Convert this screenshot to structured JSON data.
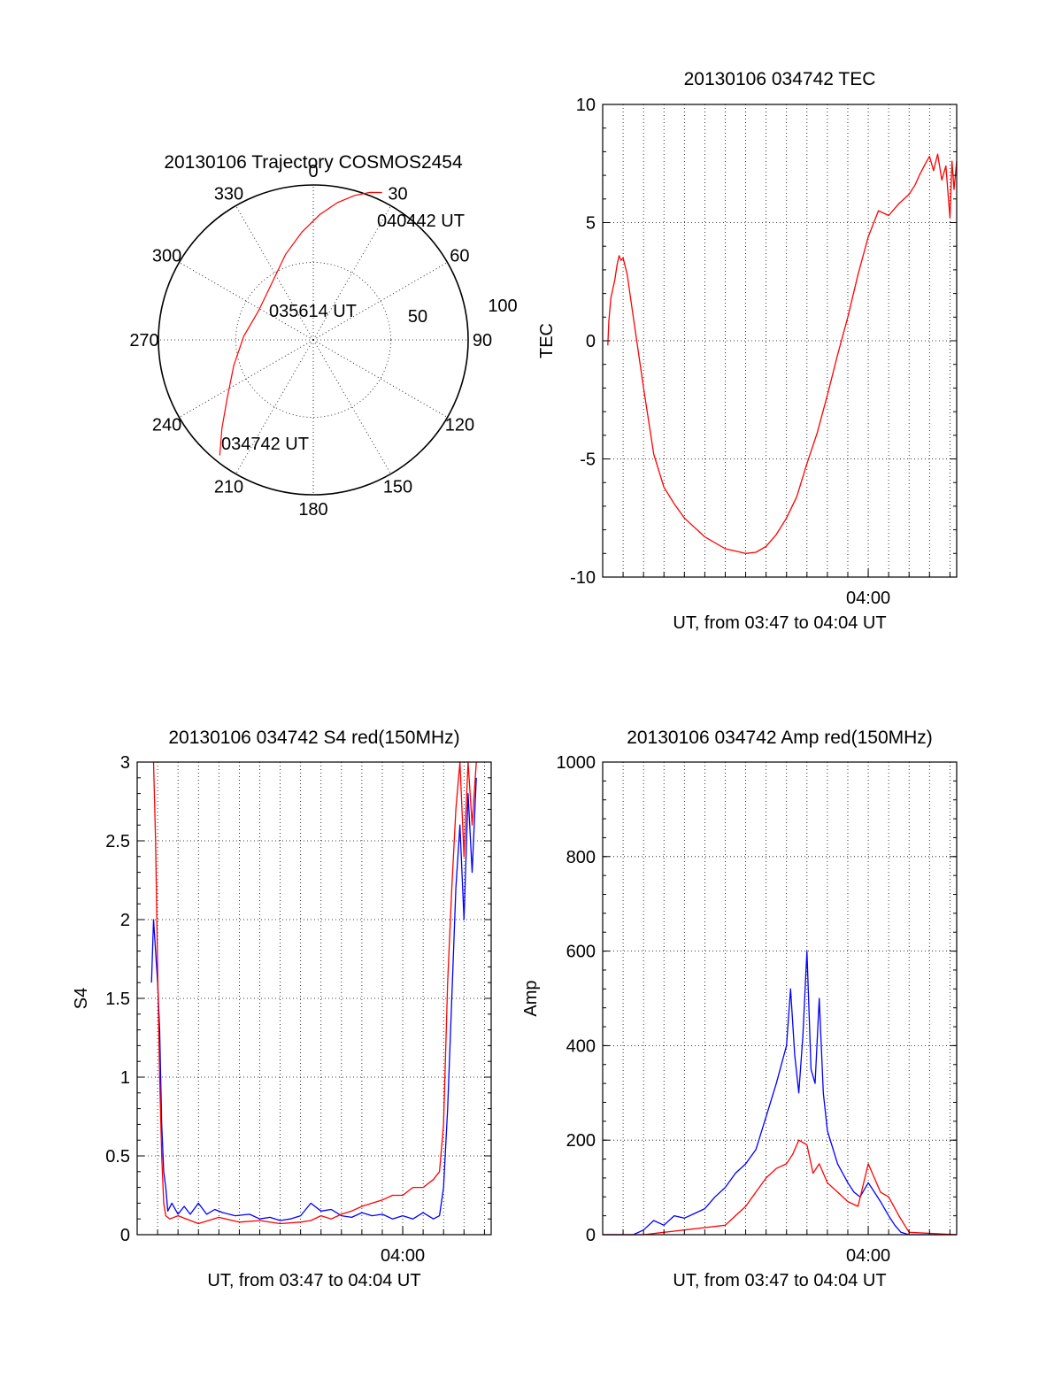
{
  "colors": {
    "red": "#ff0000",
    "blue": "#0000ff",
    "axes": "#000000"
  },
  "chart_data": [
    {
      "type": "polar",
      "title": "20130106 Trajectory COSMOS2454",
      "azimuth_labels": [
        "0",
        "30",
        "60",
        "90",
        "120",
        "150",
        "180",
        "210",
        "240",
        "270",
        "300",
        "330"
      ],
      "radius_labels": [
        "50",
        "100"
      ],
      "radius_range": [
        0,
        100
      ],
      "grid": true,
      "annotations": [
        "040442 UT",
        "035614 UT",
        "034742 UT"
      ],
      "series": [
        {
          "color": "red",
          "points": [
            {
              "az": 219,
              "r": 96
            },
            {
              "az": 226,
              "r": 82
            },
            {
              "az": 236,
              "r": 67
            },
            {
              "az": 252,
              "r": 54
            },
            {
              "az": 273,
              "r": 45
            },
            {
              "az": 298,
              "r": 40
            },
            {
              "az": 323,
              "r": 45
            },
            {
              "az": 342,
              "r": 58
            },
            {
              "az": 354,
              "r": 70
            },
            {
              "az": 3,
              "r": 81
            },
            {
              "az": 10,
              "r": 90
            },
            {
              "az": 16,
              "r": 97
            },
            {
              "az": 21,
              "r": 102
            },
            {
              "az": 25,
              "r": 105
            }
          ]
        }
      ]
    },
    {
      "type": "line",
      "title": "20130106 034742 TEC",
      "xlabel": "UT, from 03:47 to 04:04 UT",
      "ylabel": "TEC",
      "xlim": [
        0,
        17.33
      ],
      "ylim": [
        -10,
        10
      ],
      "x_tick_labels": [
        {
          "x": 13,
          "label": "04:00"
        }
      ],
      "y_tick_labels": [
        "-10",
        "-5",
        "0",
        "5",
        "10"
      ],
      "grid": true,
      "series": [
        {
          "color": "red",
          "x": [
            0.25,
            0.3,
            0.4,
            0.5,
            0.6,
            0.7,
            0.8,
            0.9,
            1.0,
            1.2,
            1.5,
            2.0,
            2.5,
            3.0,
            3.5,
            4.0,
            5.0,
            6.0,
            7.0,
            7.5,
            8.0,
            8.5,
            9.0,
            9.5,
            10.0,
            10.5,
            11.0,
            11.5,
            12.0,
            12.5,
            13.0,
            13.5,
            14.0,
            14.5,
            15.0,
            15.3,
            15.5,
            15.8,
            16.0,
            16.2,
            16.4,
            16.6,
            16.8,
            17.0,
            17.1,
            17.2,
            17.33
          ],
          "y": [
            -0.2,
            0.8,
            1.8,
            2.2,
            2.6,
            3.2,
            3.6,
            3.4,
            3.5,
            2.8,
            1.0,
            -2.0,
            -4.8,
            -6.2,
            -6.9,
            -7.5,
            -8.3,
            -8.8,
            -9.0,
            -8.95,
            -8.7,
            -8.2,
            -7.5,
            -6.6,
            -5.2,
            -3.9,
            -2.3,
            -0.6,
            1.0,
            2.8,
            4.4,
            5.5,
            5.3,
            5.8,
            6.2,
            6.6,
            7.0,
            7.5,
            7.8,
            7.2,
            7.9,
            6.8,
            7.4,
            5.2,
            7.6,
            6.4,
            7.6
          ]
        }
      ]
    },
    {
      "type": "line",
      "title": "20130106 034742 S4 red(150MHz)",
      "xlabel": "UT, from 03:47 to 04:04 UT",
      "ylabel": "S4",
      "xlim": [
        0,
        17.33
      ],
      "ylim": [
        0,
        3
      ],
      "x_tick_labels": [
        {
          "x": 13,
          "label": "04:00"
        }
      ],
      "y_tick_labels": [
        "0",
        "0.5",
        "1",
        "1.5",
        "2",
        "2.5",
        "3"
      ],
      "grid": true,
      "series": [
        {
          "color": "blue",
          "x": [
            0.7,
            0.8,
            0.9,
            1.0,
            1.1,
            1.2,
            1.3,
            1.4,
            1.5,
            1.7,
            2.0,
            2.3,
            2.6,
            3.0,
            3.4,
            3.8,
            4.2,
            4.8,
            5.5,
            6.0,
            6.5,
            7.0,
            7.5,
            8.0,
            8.5,
            9.0,
            9.5,
            10.0,
            10.5,
            11.0,
            11.5,
            12.0,
            12.5,
            13.0,
            13.5,
            14.0,
            14.5,
            14.8,
            15.0,
            15.2,
            15.4,
            15.6,
            15.8,
            16.0,
            16.2,
            16.4,
            16.6
          ],
          "y": [
            1.6,
            2.0,
            1.8,
            1.6,
            1.3,
            0.7,
            0.4,
            0.3,
            0.15,
            0.2,
            0.13,
            0.18,
            0.13,
            0.2,
            0.13,
            0.16,
            0.14,
            0.12,
            0.13,
            0.1,
            0.11,
            0.09,
            0.1,
            0.12,
            0.2,
            0.15,
            0.16,
            0.12,
            0.11,
            0.14,
            0.12,
            0.13,
            0.1,
            0.12,
            0.1,
            0.14,
            0.1,
            0.12,
            0.3,
            0.8,
            1.5,
            2.2,
            2.6,
            2.0,
            2.8,
            2.3,
            2.9
          ]
        },
        {
          "color": "red",
          "x": [
            0.8,
            0.9,
            1.0,
            1.1,
            1.2,
            1.3,
            1.4,
            1.6,
            2.0,
            3.0,
            4.0,
            5.0,
            6.0,
            7.0,
            8.0,
            8.5,
            9.0,
            9.5,
            10.0,
            10.5,
            11.0,
            11.5,
            12.0,
            12.5,
            13.0,
            13.5,
            14.0,
            14.5,
            14.8,
            15.0,
            15.2,
            15.4,
            15.6,
            15.8,
            16.0,
            16.2,
            16.4,
            16.6
          ],
          "y": [
            3.0,
            2.5,
            1.7,
            1.0,
            0.5,
            0.2,
            0.12,
            0.1,
            0.12,
            0.07,
            0.11,
            0.08,
            0.09,
            0.07,
            0.08,
            0.09,
            0.12,
            0.1,
            0.13,
            0.15,
            0.18,
            0.2,
            0.22,
            0.25,
            0.25,
            0.3,
            0.3,
            0.35,
            0.4,
            0.7,
            1.6,
            2.2,
            2.7,
            3.0,
            2.4,
            3.0,
            2.6,
            3.0
          ]
        }
      ]
    },
    {
      "type": "line",
      "title": "20130106 034742 Amp red(150MHz)",
      "xlabel": "UT, from 03:47 to 04:04 UT",
      "ylabel": "Amp",
      "xlim": [
        0,
        17.33
      ],
      "ylim": [
        0,
        1000
      ],
      "x_tick_labels": [
        {
          "x": 13,
          "label": "04:00"
        }
      ],
      "y_tick_labels": [
        "0",
        "200",
        "400",
        "600",
        "800",
        "1000"
      ],
      "grid": true,
      "series": [
        {
          "color": "blue",
          "x": [
            0,
            1.5,
            2.0,
            2.5,
            3.0,
            3.5,
            4.0,
            4.5,
            5.0,
            5.5,
            6.0,
            6.5,
            7.0,
            7.5,
            8.0,
            8.5,
            9.0,
            9.2,
            9.4,
            9.6,
            9.8,
            10.0,
            10.2,
            10.4,
            10.6,
            10.8,
            11.0,
            11.5,
            12.0,
            12.3,
            12.6,
            13.0,
            13.3,
            13.6,
            14.0,
            14.3,
            14.6,
            15.0,
            17.33
          ],
          "y": [
            0,
            0,
            10,
            30,
            20,
            40,
            35,
            45,
            55,
            80,
            100,
            130,
            150,
            180,
            250,
            320,
            400,
            520,
            380,
            300,
            420,
            600,
            350,
            320,
            500,
            300,
            220,
            150,
            110,
            90,
            80,
            110,
            90,
            70,
            40,
            20,
            5,
            0,
            0
          ]
        },
        {
          "color": "red",
          "x": [
            0,
            2.0,
            3.0,
            4.0,
            5.0,
            6.0,
            6.5,
            7.0,
            7.5,
            8.0,
            8.5,
            9.0,
            9.3,
            9.6,
            10.0,
            10.3,
            10.6,
            11.0,
            11.5,
            12.0,
            12.5,
            13.0,
            13.3,
            13.6,
            14.0,
            14.5,
            15.0,
            17.33
          ],
          "y": [
            0,
            0,
            5,
            10,
            15,
            20,
            40,
            60,
            90,
            120,
            140,
            150,
            170,
            200,
            190,
            130,
            150,
            110,
            90,
            70,
            60,
            150,
            120,
            90,
            80,
            40,
            5,
            0
          ]
        }
      ]
    }
  ]
}
